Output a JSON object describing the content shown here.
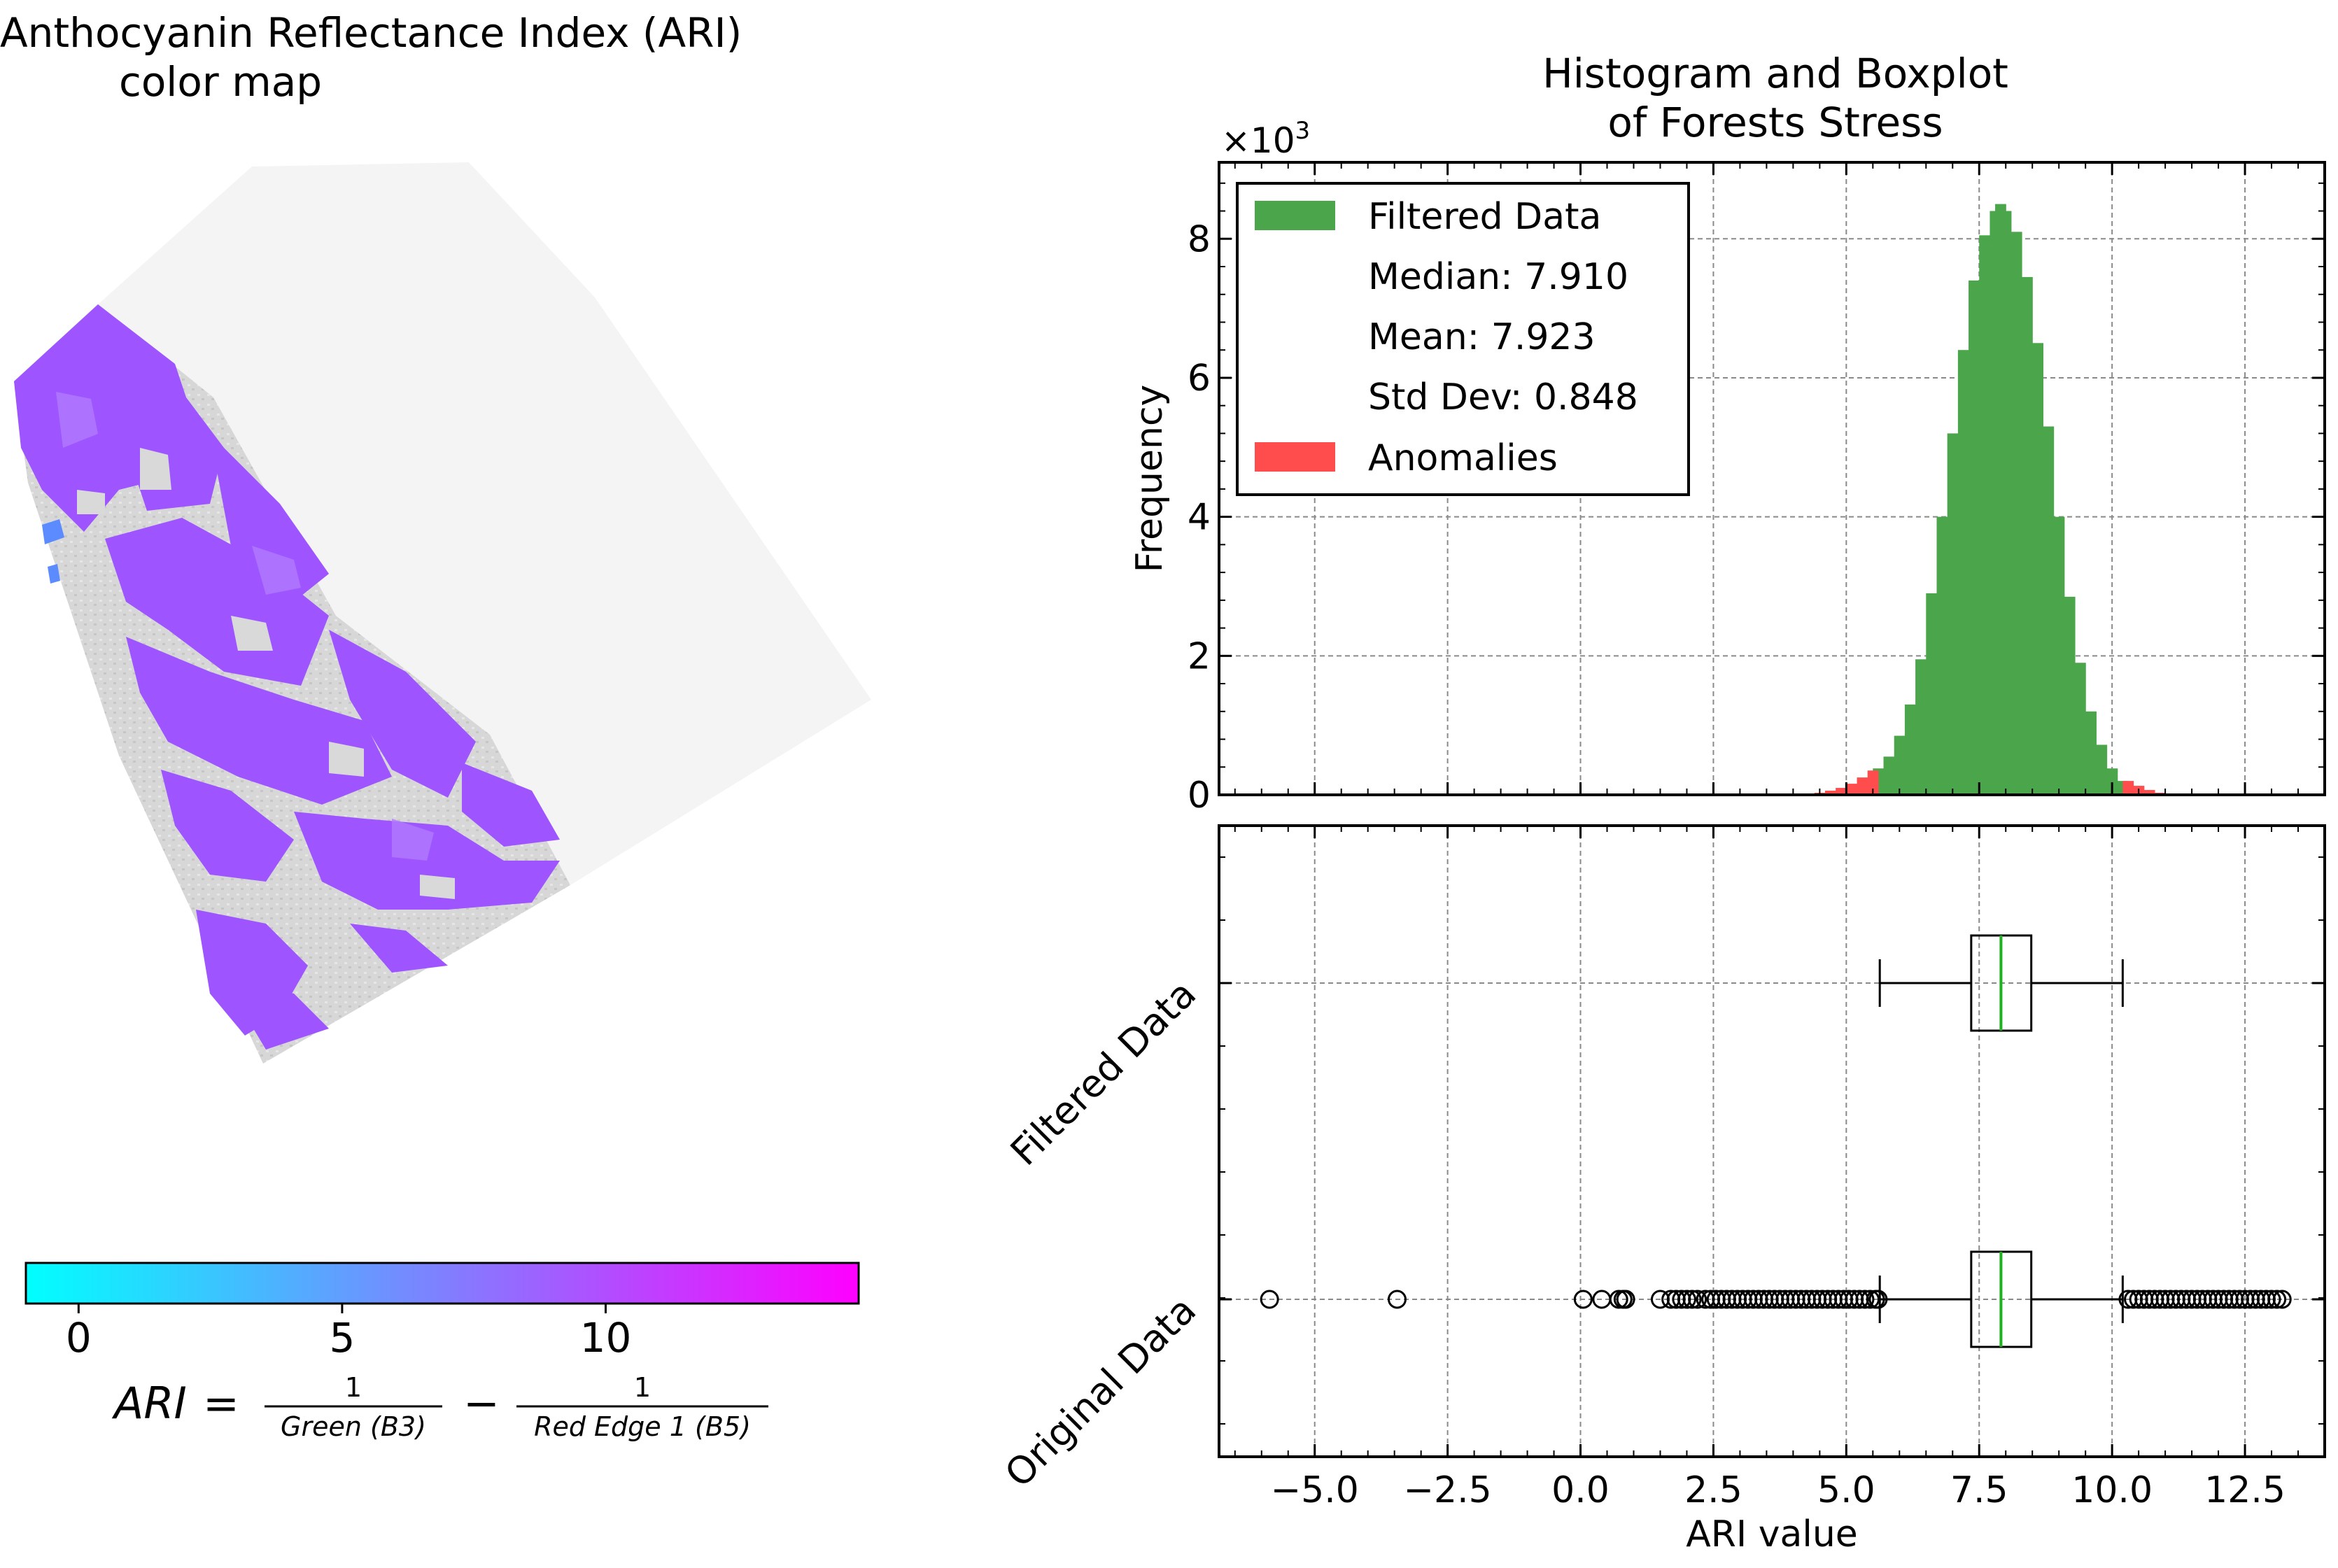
{
  "left_panel": {
    "title_line1": "Anthocyanin Reflectance Index (ARI)",
    "title_line2": "color map",
    "colorbar": {
      "ticks": [
        "0",
        "5",
        "10"
      ],
      "tick_values": [
        0,
        5,
        10
      ],
      "range": [
        -1.0,
        14.8
      ],
      "colors": [
        "#00ffff",
        "#ff00ff"
      ]
    },
    "formula": {
      "lhs": "ARI",
      "eq": "=",
      "num1": "1",
      "den1": "Green (B3)",
      "minus": "−",
      "num2": "1",
      "den2": "Red Edge 1 (B5)"
    }
  },
  "right_panel": {
    "title_line1": "Histogram and Boxplot",
    "title_line2": "of Forests Stress"
  },
  "chart_data": [
    {
      "type": "histogram",
      "title": "Histogram and Boxplot of Forests Stress",
      "ylabel": "Frequency",
      "y_multiplier": "×10",
      "y_multiplier_exp": "3",
      "xlim": [
        -6.8,
        14.0
      ],
      "ylim": [
        0,
        9.1
      ],
      "y_unit_note": "thousands",
      "yticks": [
        0,
        2,
        4,
        6,
        8
      ],
      "grid": true,
      "legend_position": "top-left",
      "legend": [
        {
          "label": "Filtered Data",
          "color": "#4ba64b"
        },
        {
          "label": "Median: 7.910"
        },
        {
          "label": "Mean: 7.923"
        },
        {
          "label": "Std Dev: 0.848"
        },
        {
          "label": "Anomalies",
          "color": "#ff4d4d"
        }
      ],
      "series": [
        {
          "name": "Filtered Data",
          "color": "#4ba64b",
          "x": [
            5.6,
            5.8,
            6.0,
            6.2,
            6.4,
            6.6,
            6.8,
            7.0,
            7.2,
            7.4,
            7.6,
            7.8,
            7.9,
            8.0,
            8.2,
            8.4,
            8.6,
            8.8,
            9.0,
            9.2,
            9.4,
            9.6,
            9.8,
            10.0,
            10.2
          ],
          "y": [
            0.38,
            0.55,
            0.85,
            1.3,
            1.95,
            2.9,
            4.0,
            5.2,
            6.4,
            7.4,
            8.05,
            8.4,
            8.5,
            8.4,
            8.1,
            7.45,
            6.5,
            5.3,
            4.0,
            2.85,
            1.9,
            1.2,
            0.72,
            0.38,
            0.2
          ]
        },
        {
          "name": "Anomalies",
          "color": "#ff4d4d",
          "x": [
            4.3,
            4.5,
            4.7,
            4.9,
            5.1,
            5.3,
            5.5,
            10.3,
            10.5,
            10.7,
            10.9,
            11.1
          ],
          "y": [
            0.01,
            0.03,
            0.06,
            0.1,
            0.16,
            0.25,
            0.35,
            0.2,
            0.13,
            0.07,
            0.03,
            0.01
          ]
        }
      ]
    },
    {
      "type": "boxplot",
      "xlabel": "ARI value",
      "xlim": [
        -6.8,
        14.0
      ],
      "xticks": [
        -5.0,
        -2.5,
        0.0,
        2.5,
        5.0,
        7.5,
        10.0,
        12.5
      ],
      "xtick_labels": [
        "−5.0",
        "−2.5",
        "0.0",
        "2.5",
        "5.0",
        "7.5",
        "10.0",
        "12.5"
      ],
      "grid": true,
      "categories": [
        "Filtered Data",
        "Original Data"
      ],
      "boxes": [
        {
          "name": "Filtered Data",
          "q1": 7.35,
          "median": 7.91,
          "q3": 8.48,
          "whisker_low": 5.63,
          "whisker_high": 10.2,
          "outliers": []
        },
        {
          "name": "Original Data",
          "q1": 7.35,
          "median": 7.91,
          "q3": 8.48,
          "whisker_low": 5.63,
          "whisker_high": 10.2,
          "outliers": [
            -5.85,
            -3.45,
            0.05,
            0.4,
            0.72,
            0.8,
            0.85,
            1.5,
            1.7,
            1.8,
            1.9,
            2.0,
            2.1,
            2.2,
            2.35,
            2.45,
            2.55,
            2.65,
            2.75,
            2.85,
            2.95,
            3.05,
            3.15,
            3.25,
            3.35,
            3.45,
            3.55,
            3.65,
            3.75,
            3.85,
            3.95,
            4.05,
            4.15,
            4.25,
            4.35,
            4.45,
            4.55,
            4.65,
            4.75,
            4.85,
            4.95,
            5.05,
            5.15,
            5.25,
            5.35,
            5.45,
            5.55,
            5.6,
            10.3,
            10.4,
            10.5,
            10.6,
            10.7,
            10.8,
            10.9,
            11.0,
            11.1,
            11.2,
            11.3,
            11.4,
            11.5,
            11.6,
            11.7,
            11.8,
            11.9,
            12.0,
            12.1,
            12.2,
            12.3,
            12.4,
            12.5,
            12.6,
            12.7,
            12.8,
            12.9,
            13.0,
            13.1,
            13.2
          ]
        }
      ],
      "median_color": "#1db31d"
    }
  ]
}
